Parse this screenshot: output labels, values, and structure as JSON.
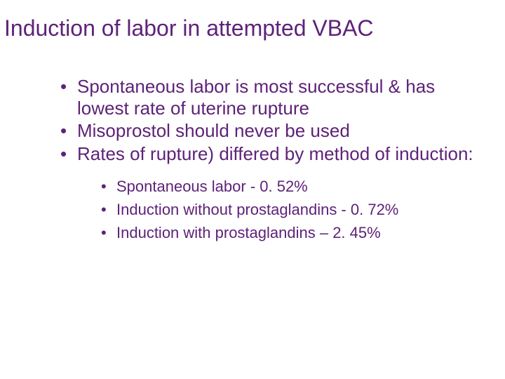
{
  "colors": {
    "title": "#5e2278",
    "body": "#5e2278",
    "background": "#ffffff"
  },
  "title": "Induction of labor in attempted VBAC",
  "bullets": {
    "b1": "Spontaneous labor is most successful & has lowest rate of uterine rupture",
    "b2": "Misoprostol should never be used",
    "b3": "Rates of rupture) differed by method of induction:"
  },
  "sub": {
    "s1": "Spontaneous labor - 0. 52%",
    "s2": "Induction without prostaglandins - 0. 72%",
    "s3": "Induction with prostaglandins – 2. 45%"
  }
}
